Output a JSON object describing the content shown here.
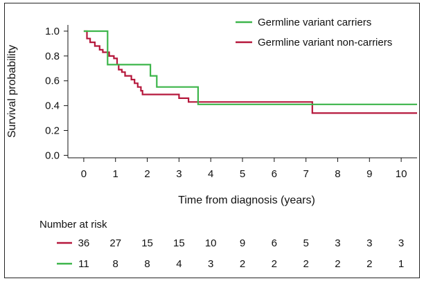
{
  "chart_data": {
    "type": "line",
    "title": "",
    "xlabel": "Time from diagnosis (years)",
    "ylabel": "Survival probability",
    "xlim": [
      -0.5,
      10.5
    ],
    "ylim": [
      -0.02,
      1.05
    ],
    "xticks": [
      0,
      1,
      2,
      3,
      4,
      5,
      6,
      7,
      8,
      9,
      10
    ],
    "yticks": [
      "0.0",
      "0.2",
      "0.4",
      "0.6",
      "0.8",
      "1.0"
    ],
    "legend_position": "top-right",
    "series": [
      {
        "name": "Germline variant carriers",
        "color": "#3cb54a",
        "step_points": [
          [
            0,
            1.0
          ],
          [
            0.75,
            1.0
          ],
          [
            0.75,
            0.73
          ],
          [
            2.1,
            0.73
          ],
          [
            2.1,
            0.64
          ],
          [
            2.3,
            0.64
          ],
          [
            2.3,
            0.55
          ],
          [
            3.6,
            0.55
          ],
          [
            3.6,
            0.41
          ],
          [
            10.5,
            0.41
          ]
        ]
      },
      {
        "name": "Germline variant non-carriers",
        "color": "#b5173b",
        "step_points": [
          [
            0,
            1.0
          ],
          [
            0.1,
            1.0
          ],
          [
            0.1,
            0.94
          ],
          [
            0.2,
            0.94
          ],
          [
            0.2,
            0.91
          ],
          [
            0.35,
            0.91
          ],
          [
            0.35,
            0.88
          ],
          [
            0.5,
            0.88
          ],
          [
            0.5,
            0.85
          ],
          [
            0.6,
            0.85
          ],
          [
            0.6,
            0.83
          ],
          [
            0.8,
            0.83
          ],
          [
            0.8,
            0.8
          ],
          [
            0.95,
            0.8
          ],
          [
            0.95,
            0.78
          ],
          [
            1.05,
            0.78
          ],
          [
            1.05,
            0.73
          ],
          [
            1.1,
            0.73
          ],
          [
            1.1,
            0.69
          ],
          [
            1.2,
            0.69
          ],
          [
            1.2,
            0.67
          ],
          [
            1.3,
            0.67
          ],
          [
            1.3,
            0.64
          ],
          [
            1.5,
            0.64
          ],
          [
            1.5,
            0.61
          ],
          [
            1.6,
            0.61
          ],
          [
            1.6,
            0.58
          ],
          [
            1.7,
            0.58
          ],
          [
            1.7,
            0.55
          ],
          [
            1.8,
            0.55
          ],
          [
            1.8,
            0.52
          ],
          [
            1.85,
            0.52
          ],
          [
            1.85,
            0.49
          ],
          [
            3.0,
            0.49
          ],
          [
            3.0,
            0.46
          ],
          [
            3.3,
            0.46
          ],
          [
            3.3,
            0.43
          ],
          [
            7.2,
            0.43
          ],
          [
            7.2,
            0.34
          ],
          [
            10.5,
            0.34
          ]
        ]
      }
    ]
  },
  "risk_table": {
    "title": "Number at risk",
    "rows": [
      {
        "color": "#b5173b",
        "values": [
          "36",
          "27",
          "15",
          "15",
          "10",
          "9",
          "6",
          "5",
          "3",
          "3",
          "3"
        ]
      },
      {
        "color": "#3cb54a",
        "values": [
          "11",
          "8",
          "8",
          "4",
          "3",
          "2",
          "2",
          "2",
          "2",
          "2",
          "1"
        ]
      }
    ]
  }
}
